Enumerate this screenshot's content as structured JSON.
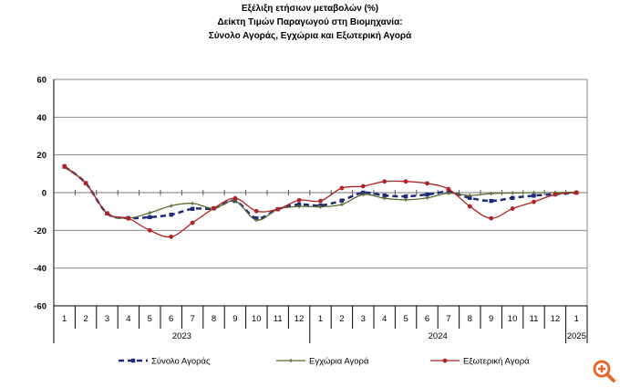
{
  "chart_data": {
    "type": "line",
    "title_lines": [
      "Εξέλιξη ετήσιων μεταβολών (%)",
      "Δείκτη Τιμών Παραγωγού στη Βιομηχανία:",
      "Σύνολο Αγοράς, Εγχώρια και Εξωτερική Αγορά"
    ],
    "categories": [
      "1",
      "2",
      "3",
      "4",
      "5",
      "6",
      "7",
      "8",
      "9",
      "10",
      "11",
      "12",
      "1",
      "2",
      "3",
      "4",
      "5",
      "6",
      "7",
      "8",
      "9",
      "10",
      "11",
      "12",
      "1"
    ],
    "year_groups": [
      {
        "label": "2023",
        "count": 12
      },
      {
        "label": "2024",
        "count": 12
      },
      {
        "label": "2025",
        "count": 1
      }
    ],
    "ylim": [
      -60,
      60
    ],
    "yticks": [
      -60,
      -40,
      -20,
      0,
      20,
      40,
      60
    ],
    "grid": true,
    "legend_position": "bottom",
    "series": [
      {
        "name": "Σύνολο Αγοράς",
        "color": "#1F2A7A",
        "style": "dashed",
        "marker": "square",
        "values": [
          13.8,
          5,
          -11,
          -13.5,
          -13,
          -11.7,
          -8.6,
          -8.3,
          -4.4,
          -13.6,
          -8.8,
          -6.3,
          -6.8,
          -4.2,
          0,
          -1.5,
          -2,
          -1,
          0.3,
          -2.8,
          -4.4,
          -2.8,
          -1.6,
          -0.8,
          0
        ]
      },
      {
        "name": "Εγχώρια Αγορά",
        "color": "#5B6B2E",
        "style": "solid",
        "marker": "plus",
        "values": [
          13.5,
          5,
          -11,
          -13.5,
          -10.7,
          -7,
          -5.7,
          -8.3,
          -4.4,
          -14.6,
          -8.8,
          -7.3,
          -7.5,
          -6.3,
          -1,
          -3,
          -3.8,
          -2.8,
          -0.3,
          -1.5,
          -0.5,
          -0.2,
          0,
          0,
          0.3
        ]
      },
      {
        "name": "Εξωτερική Αγορά",
        "color": "#B22222",
        "style": "solid",
        "marker": "circle",
        "values": [
          14,
          5,
          -11,
          -13.7,
          -20,
          -23.4,
          -16,
          -8.3,
          -3,
          -9.8,
          -8.8,
          -4,
          -4.4,
          2.4,
          3.4,
          5.9,
          5.9,
          4.9,
          1.9,
          -7.3,
          -13.6,
          -8.5,
          -4.9,
          -1,
          0
        ]
      }
    ]
  },
  "zoom_icon": "zoom-in-icon",
  "zoom_icon_color": "#E8692E"
}
